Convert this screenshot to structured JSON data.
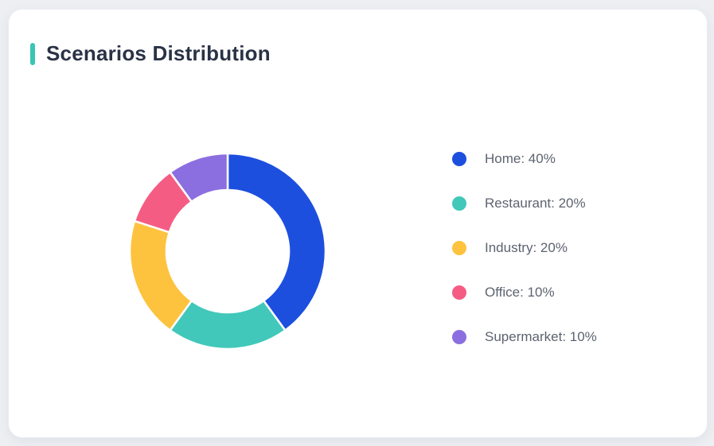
{
  "page": {
    "background_color": "#edeff3"
  },
  "card": {
    "title": "Scenarios Distribution",
    "accent_color": "#38c5b5",
    "background_color": "#ffffff"
  },
  "chart_data": {
    "type": "pie",
    "subtype": "donut",
    "title": "Scenarios Distribution",
    "start_angle_deg": 0,
    "direction": "clockwise",
    "inner_radius_ratio": 0.63,
    "outer_radius_px": 123,
    "inner_radius_px": 77,
    "segment_gap_color": "#ffffff",
    "legend_position": "right",
    "legend_format": "{label}: {value}%",
    "categories": [
      "Home",
      "Restaurant",
      "Industry",
      "Office",
      "Supermarket"
    ],
    "values": [
      40,
      20,
      20,
      10,
      10
    ],
    "segments": [
      {
        "label": "Home",
        "value": 40,
        "percent_text": "40%",
        "legend_text": "Home: 40%",
        "color": "#1d4fdf"
      },
      {
        "label": "Restaurant",
        "value": 20,
        "percent_text": "20%",
        "legend_text": "Restaurant: 20%",
        "color": "#41c8ba"
      },
      {
        "label": "Industry",
        "value": 20,
        "percent_text": "20%",
        "legend_text": "Industry: 20%",
        "color": "#fdc33e"
      },
      {
        "label": "Office",
        "value": 10,
        "percent_text": "10%",
        "legend_text": "Office: 10%",
        "color": "#f55c84"
      },
      {
        "label": "Supermarket",
        "value": 10,
        "percent_text": "10%",
        "legend_text": "Supermarket: 10%",
        "color": "#8b6fe0"
      }
    ]
  }
}
